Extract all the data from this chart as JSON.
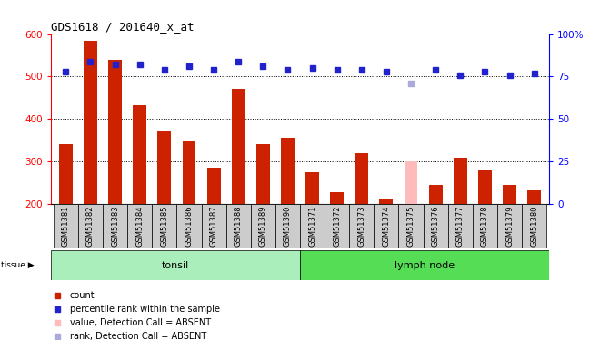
{
  "title": "GDS1618 / 201640_x_at",
  "samples": [
    "GSM51381",
    "GSM51382",
    "GSM51383",
    "GSM51384",
    "GSM51385",
    "GSM51386",
    "GSM51387",
    "GSM51388",
    "GSM51389",
    "GSM51390",
    "GSM51371",
    "GSM51372",
    "GSM51373",
    "GSM51374",
    "GSM51375",
    "GSM51376",
    "GSM51377",
    "GSM51378",
    "GSM51379",
    "GSM51380"
  ],
  "bar_values": [
    340,
    585,
    540,
    433,
    370,
    348,
    285,
    470,
    340,
    355,
    275,
    228,
    320,
    210,
    300,
    245,
    308,
    278,
    245,
    232
  ],
  "bar_absent": [
    false,
    false,
    false,
    false,
    false,
    false,
    false,
    false,
    false,
    false,
    false,
    false,
    false,
    false,
    true,
    false,
    false,
    false,
    false,
    false
  ],
  "rank_values": [
    78,
    84,
    82,
    82,
    79,
    81,
    79,
    84,
    81,
    79,
    80,
    79,
    79,
    78,
    71,
    79,
    76,
    78,
    76,
    77
  ],
  "rank_absent": [
    false,
    false,
    false,
    false,
    false,
    false,
    false,
    false,
    false,
    false,
    false,
    false,
    false,
    false,
    true,
    false,
    false,
    false,
    false,
    false
  ],
  "tonsil_count": 10,
  "lymph_count": 10,
  "bar_color": "#cc2200",
  "bar_absent_color": "#ffbbbb",
  "rank_color": "#2222cc",
  "rank_absent_color": "#aaaadd",
  "tonsil_color": "#aaeebb",
  "lymph_color": "#55dd55",
  "bg_color": "#ffffff",
  "ylim_left": [
    200,
    600
  ],
  "ylim_right": [
    0,
    100
  ],
  "yticks_left": [
    200,
    300,
    400,
    500,
    600
  ],
  "yticks_right": [
    0,
    25,
    50,
    75,
    100
  ],
  "ytick_right_labels": [
    "0",
    "25",
    "50",
    "75",
    "100%"
  ],
  "grid_values": [
    300,
    400,
    500
  ],
  "legend_labels": [
    "count",
    "percentile rank within the sample",
    "value, Detection Call = ABSENT",
    "rank, Detection Call = ABSENT"
  ],
  "legend_colors": [
    "#cc2200",
    "#2222cc",
    "#ffbbbb",
    "#aaaadd"
  ]
}
